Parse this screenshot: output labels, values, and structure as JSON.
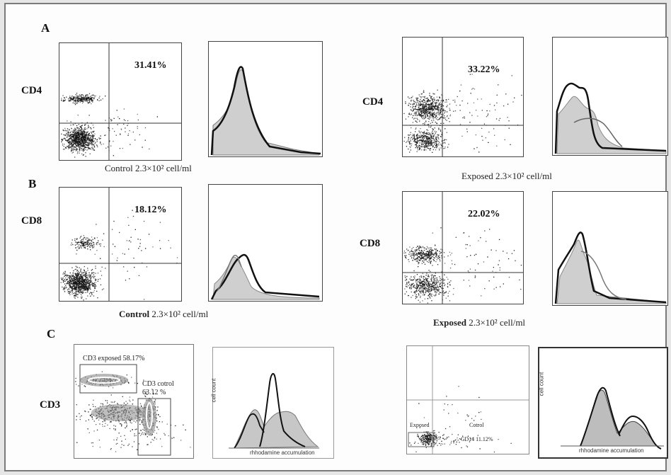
{
  "panels": {
    "a": {
      "letter": "A"
    },
    "b": {
      "letter": "B"
    },
    "c": {
      "letter": "C"
    }
  },
  "markers": {
    "cd4": "CD4",
    "cd8": "CD8",
    "cd3": "CD3"
  },
  "percentages": {
    "cd4_control": "31.41%",
    "cd4_exposed": "33.22%",
    "cd8_control": "18.12%",
    "cd8_exposed": "22.02%"
  },
  "captions": {
    "a_control": "Control 2.3×10² cell/ml",
    "a_exposed": "Exposed 2.3×10² cell/ml",
    "b_control_bold": "Control",
    "b_control_rest": " 2.3×10² cell/ml",
    "b_exposed_bold": "Exposed",
    "b_exposed_rest": " 2.3×10² cell/ml"
  },
  "gates": {
    "cd3_exposed": "CD3 exposed 58.17%",
    "cd3_control_line1": "CD3 cotrol",
    "cd3_control_line2": "63.12 %",
    "gate_exposed": "Exposed",
    "gate_control": "Cotrol",
    "gate_cd14": "CD14  11.12%"
  },
  "histogram_axes": {
    "cell_count": "cell count",
    "x_label": "rhhodamine accumulation"
  },
  "colors": {
    "fill": "#cfcfcf",
    "line": "#111111",
    "dots": "#111111"
  }
}
